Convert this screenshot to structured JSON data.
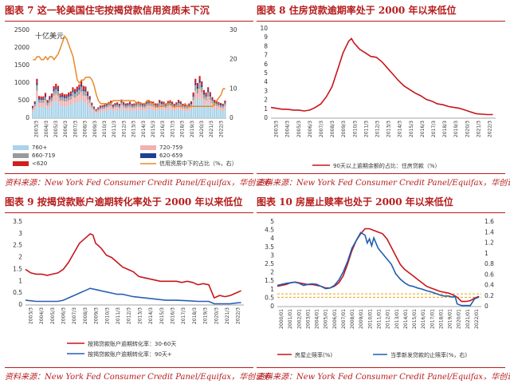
{
  "panels": {
    "p7": {
      "title": "图表 7   这一轮美国住宅按揭贷款信用资质未下沉",
      "source": "资料来源：New York Fed Consumer Credit Panel/Equifax，华创证券"
    },
    "p8": {
      "title": "图表 8   住房贷款逾期率处于 2000 年以来低位",
      "source": "资料来源：New York Fed Consumer Credit Panel/Equifax，华创证券"
    },
    "p9": {
      "title": "图表 9   按揭贷款账户逾期转化率处于 2000 年以来低位",
      "source": "资料来源：New York Fed Consumer Credit Panel/Equifax，华创证券"
    },
    "p10": {
      "title": "图表 10   房屋止赎率也处于 2000 年以来低位",
      "source": "资料来源：New York Fed Consumer Credit Panel/Equifax，华创证券"
    }
  },
  "colors": {
    "accent": "#b71c1c",
    "blue": "#1f5fb0",
    "orange": "#e8892b"
  },
  "chart_data": [
    {
      "id": "p7",
      "type": "bar",
      "unit_label": "十亿美元",
      "x_ticks": [
        "2003/3",
        "2004/3",
        "2005/3",
        "2006/3",
        "2007/3",
        "2008/3",
        "2009/3",
        "2010/3",
        "2011/3",
        "2012/3",
        "2013/3",
        "2014/3",
        "2015/3",
        "2016/3",
        "2017/3",
        "2018/3",
        "2019/3",
        "2020/3",
        "2021/3",
        "2022/3"
      ],
      "y_ticks": [
        0,
        500,
        1000,
        1500,
        2000,
        2500
      ],
      "y2_ticks": [
        0,
        10,
        20,
        30
      ],
      "ylim": [
        0,
        2500
      ],
      "y2lim": [
        0,
        30
      ],
      "legend": [
        {
          "label": "760+",
          "color": "#a9d3ea",
          "kind": "box"
        },
        {
          "label": "720-759",
          "color": "#f2b1b1",
          "kind": "box"
        },
        {
          "label": "660-719",
          "color": "#9a9a9a",
          "kind": "box"
        },
        {
          "label": "620-659",
          "color": "#1f3f94",
          "kind": "box"
        },
        {
          "label": "<620",
          "color": "#d11f1f",
          "kind": "box"
        },
        {
          "label": "信用资质中下的占比（%，右）",
          "color": "#e8892b",
          "kind": "line"
        }
      ],
      "totals": [
        350,
        480,
        1120,
        630,
        620,
        620,
        720,
        520,
        630,
        700,
        910,
        980,
        920,
        700,
        720,
        680,
        680,
        730,
        760,
        880,
        830,
        900,
        960,
        1070,
        920,
        900,
        760,
        630,
        440,
        330,
        260,
        310,
        360,
        370,
        390,
        430,
        460,
        500,
        390,
        430,
        450,
        410,
        530,
        460,
        420,
        430,
        470,
        410,
        420,
        460,
        470,
        450,
        430,
        420,
        490,
        520,
        480,
        470,
        420,
        420,
        520,
        480,
        470,
        420,
        490,
        510,
        470,
        410,
        450,
        520,
        480,
        410,
        400,
        380,
        420,
        480,
        730,
        1120,
        1000,
        1200,
        1050,
        800,
        730,
        880,
        740,
        600,
        520,
        500,
        460,
        430,
        410,
        500
      ],
      "share_pct": [
        20,
        20,
        21,
        21,
        20,
        20,
        21,
        20,
        21,
        21,
        20,
        21,
        22,
        24,
        26,
        28,
        27,
        25,
        23,
        21,
        17,
        13,
        12,
        13,
        13,
        14,
        14,
        14,
        13,
        11,
        8,
        6,
        5,
        5,
        5,
        5,
        5,
        5,
        6,
        6,
        6,
        6,
        6,
        6,
        6,
        6,
        6,
        6,
        6,
        5,
        5,
        5,
        5,
        5,
        6,
        6,
        5,
        5,
        4,
        4,
        4,
        4,
        4,
        5,
        5,
        5,
        4,
        4,
        4,
        4,
        4,
        4,
        5,
        4,
        4,
        4,
        4,
        4,
        4,
        4,
        4,
        4,
        4,
        4,
        4,
        4,
        5,
        6,
        7,
        8,
        10,
        10
      ],
      "shares": [
        0.5,
        0.2,
        0.14,
        0.06,
        0.1
      ]
    },
    {
      "id": "p8",
      "type": "line",
      "x_ticks": [
        "2003/3",
        "2004/3",
        "2005/3",
        "2006/3",
        "2007/3",
        "2008/3",
        "2009/3",
        "2010/3",
        "2011/3",
        "2012/3",
        "2013/3",
        "2014/3",
        "2015/3",
        "2016/3",
        "2017/3",
        "2018/3",
        "2019/3",
        "2020/3",
        "2021/3",
        "2022/3"
      ],
      "y_ticks": [
        0,
        1,
        2,
        3,
        4,
        5,
        6,
        7,
        8,
        9,
        10
      ],
      "ylim": [
        0,
        10
      ],
      "series": [
        {
          "name": "90天以上逾期余额的占比：住房贷款（%）",
          "color": "#c8151b",
          "x": [
            2003.0,
            2003.5,
            2004.0,
            2004.5,
            2005.0,
            2005.5,
            2006.0,
            2006.5,
            2007.0,
            2007.5,
            2008.0,
            2008.5,
            2009.0,
            2009.5,
            2010.0,
            2010.25,
            2010.5,
            2011.0,
            2011.5,
            2012.0,
            2012.5,
            2013.0,
            2013.5,
            2014.0,
            2014.5,
            2015.0,
            2015.5,
            2016.0,
            2016.5,
            2017.0,
            2017.5,
            2018.0,
            2018.5,
            2019.0,
            2019.5,
            2020.0,
            2020.5,
            2021.0,
            2021.5,
            2022.0,
            2022.5,
            2023.0
          ],
          "y": [
            1.2,
            1.1,
            1.0,
            1.0,
            0.9,
            0.9,
            0.8,
            0.9,
            1.2,
            1.6,
            2.4,
            3.5,
            5.4,
            7.3,
            8.6,
            8.9,
            8.4,
            7.7,
            7.3,
            6.9,
            6.8,
            6.3,
            5.6,
            4.9,
            4.2,
            3.6,
            3.2,
            2.8,
            2.5,
            2.1,
            1.9,
            1.6,
            1.5,
            1.3,
            1.2,
            1.1,
            0.9,
            0.7,
            0.5,
            0.45,
            0.4,
            0.4
          ]
        }
      ]
    },
    {
      "id": "p9",
      "type": "line",
      "x_ticks": [
        "2003/3",
        "2004/3",
        "2005/3",
        "2006/3",
        "2007/3",
        "2008/3",
        "2009/3",
        "2010/3",
        "2011/3",
        "2012/3",
        "2013/3",
        "2014/3",
        "2015/3",
        "2016/3",
        "2017/3",
        "2018/3",
        "2019/3",
        "2020/3",
        "2021/3",
        "2022/3"
      ],
      "y_ticks": [
        0.0,
        0.5,
        1.0,
        1.5,
        2.0,
        2.5,
        3.0,
        3.5
      ],
      "ylim": [
        0,
        3.5
      ],
      "series": [
        {
          "name": "按揭贷款账户逾期转化率：30-60天",
          "color": "#c8151b",
          "x": [
            2003.0,
            2003.5,
            2004.0,
            2004.5,
            2005.0,
            2005.5,
            2006.0,
            2006.5,
            2007.0,
            2007.5,
            2008.0,
            2008.5,
            2009.0,
            2009.25,
            2009.5,
            2010.0,
            2010.5,
            2011.0,
            2011.5,
            2012.0,
            2012.5,
            2013.0,
            2013.5,
            2014.0,
            2014.5,
            2015.0,
            2015.5,
            2016.0,
            2016.5,
            2017.0,
            2017.5,
            2018.0,
            2018.5,
            2019.0,
            2019.5,
            2020.0,
            2020.5,
            2021.0,
            2021.5,
            2022.0,
            2022.5,
            2023.0
          ],
          "y": [
            1.5,
            1.35,
            1.3,
            1.3,
            1.25,
            1.3,
            1.35,
            1.5,
            1.8,
            2.2,
            2.6,
            2.8,
            3.0,
            2.95,
            2.6,
            2.4,
            2.1,
            2.0,
            1.8,
            1.6,
            1.5,
            1.4,
            1.2,
            1.15,
            1.1,
            1.05,
            1.0,
            1.0,
            1.0,
            1.0,
            0.95,
            1.0,
            0.95,
            0.85,
            0.9,
            0.85,
            0.3,
            0.4,
            0.35,
            0.4,
            0.5,
            0.6
          ]
        },
        {
          "name": "按揭贷款账户逾期转化率：90天+",
          "color": "#2a5fb4",
          "x": [
            2003.0,
            2004.0,
            2005.0,
            2006.0,
            2006.5,
            2007.0,
            2007.5,
            2008.0,
            2008.5,
            2009.0,
            2009.5,
            2010.0,
            2010.5,
            2011.0,
            2011.5,
            2012.0,
            2012.5,
            2013.0,
            2014.0,
            2015.0,
            2016.0,
            2017.0,
            2018.0,
            2019.0,
            2020.0,
            2020.5,
            2021.0,
            2021.5,
            2022.0,
            2022.5,
            2023.0
          ],
          "y": [
            0.2,
            0.15,
            0.15,
            0.15,
            0.2,
            0.3,
            0.4,
            0.5,
            0.6,
            0.7,
            0.65,
            0.6,
            0.55,
            0.5,
            0.45,
            0.45,
            0.4,
            0.35,
            0.3,
            0.25,
            0.2,
            0.2,
            0.18,
            0.15,
            0.15,
            0.05,
            0.05,
            0.05,
            0.05,
            0.08,
            0.1
          ]
        }
      ]
    },
    {
      "id": "p10",
      "type": "line",
      "x_ticks": [
        "2000/01",
        "2001/01",
        "2002/01",
        "2003/01",
        "2004/01",
        "2005/01",
        "2006/01",
        "2007/01",
        "2008/01",
        "2009/01",
        "2010/01",
        "2011/01",
        "2012/01",
        "2013/01",
        "2014/01",
        "2015/01",
        "2016/01",
        "2017/01",
        "2018/01",
        "2019/01",
        "2020/01",
        "2021/01",
        "2022/01"
      ],
      "y_ticks": [
        0,
        0.5,
        1,
        1.5,
        2,
        2.5,
        3,
        3.5,
        4,
        4.5,
        5
      ],
      "y2_ticks": [
        0,
        0.2,
        0.4,
        0.6,
        0.8,
        1.0,
        1.2,
        1.4,
        1.6
      ],
      "ylim": [
        0,
        5
      ],
      "y2lim": [
        0,
        1.6
      ],
      "dashed_levels": [
        0.55,
        0.75
      ],
      "series": [
        {
          "name": "房屋止赎率(%)",
          "color": "#c8151b",
          "axis": "left",
          "x": [
            2000.0,
            2000.5,
            2001.0,
            2001.5,
            2002.0,
            2002.5,
            2003.0,
            2003.5,
            2004.0,
            2004.5,
            2005.0,
            2005.5,
            2006.0,
            2006.5,
            2007.0,
            2007.5,
            2008.0,
            2008.5,
            2009.0,
            2009.5,
            2010.0,
            2010.5,
            2011.0,
            2011.5,
            2012.0,
            2012.5,
            2013.0,
            2013.5,
            2014.0,
            2014.5,
            2015.0,
            2015.5,
            2016.0,
            2016.5,
            2017.0,
            2017.5,
            2018.0,
            2018.5,
            2019.0,
            2019.5,
            2020.0,
            2020.5,
            2021.0,
            2021.5,
            2022.0,
            2022.5,
            2023.0
          ],
          "y": [
            1.2,
            1.25,
            1.3,
            1.4,
            1.45,
            1.4,
            1.35,
            1.3,
            1.3,
            1.25,
            1.2,
            1.1,
            1.1,
            1.2,
            1.4,
            1.8,
            2.5,
            3.3,
            3.9,
            4.3,
            4.6,
            4.6,
            4.5,
            4.4,
            4.3,
            4.0,
            3.5,
            3.0,
            2.5,
            2.2,
            2.0,
            1.8,
            1.6,
            1.4,
            1.2,
            1.1,
            1.0,
            0.9,
            0.85,
            0.8,
            0.7,
            0.55,
            0.3,
            0.3,
            0.35,
            0.5,
            0.6
          ]
        },
        {
          "name": "当季新发贷款的止赎率(%，右)",
          "color": "#1f5fb0",
          "axis": "right",
          "x": [
            2000.0,
            2000.5,
            2001.0,
            2001.5,
            2002.0,
            2002.5,
            2003.0,
            2003.5,
            2004.0,
            2004.5,
            2005.0,
            2005.5,
            2006.0,
            2006.5,
            2007.0,
            2007.5,
            2008.0,
            2008.5,
            2009.0,
            2009.5,
            2010.0,
            2010.25,
            2010.5,
            2010.75,
            2011.0,
            2011.5,
            2012.0,
            2012.5,
            2013.0,
            2013.5,
            2014.0,
            2014.5,
            2015.0,
            2015.5,
            2016.0,
            2016.5,
            2017.0,
            2017.5,
            2018.0,
            2018.5,
            2019.0,
            2019.5,
            2020.0,
            2020.25,
            2020.5,
            2021.0,
            2021.5,
            2022.0,
            2022.5,
            2023.0
          ],
          "y": [
            0.4,
            0.42,
            0.44,
            0.45,
            0.46,
            0.44,
            0.4,
            0.42,
            0.43,
            0.42,
            0.38,
            0.34,
            0.35,
            0.4,
            0.5,
            0.65,
            0.85,
            1.1,
            1.25,
            1.4,
            1.35,
            1.2,
            1.28,
            1.15,
            1.3,
            1.1,
            1.0,
            0.9,
            0.8,
            0.62,
            0.52,
            0.45,
            0.4,
            0.38,
            0.35,
            0.33,
            0.3,
            0.28,
            0.25,
            0.22,
            0.2,
            0.2,
            0.18,
            0.2,
            0.05,
            0.02,
            0.02,
            0.02,
            0.15,
            0.18
          ]
        }
      ]
    }
  ]
}
